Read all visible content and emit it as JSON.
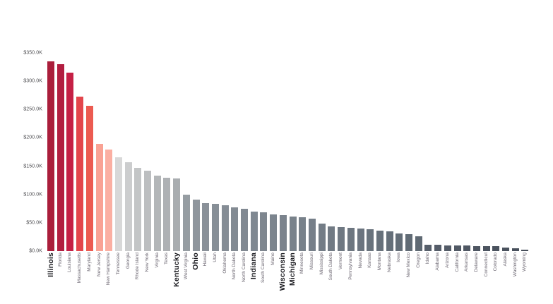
{
  "chart_data": {
    "type": "bar",
    "title": "",
    "xlabel": "",
    "ylabel": "",
    "grid": false,
    "legend": false,
    "ylim": [
      0,
      350
    ],
    "value_format": "$K",
    "y_ticks": [
      {
        "label": "$0.0K",
        "value": 0
      },
      {
        "label": "$50.0K",
        "value": 50
      },
      {
        "label": "$100.0K",
        "value": 100
      },
      {
        "label": "$150.0K",
        "value": 150
      },
      {
        "label": "$200.0K",
        "value": 200
      },
      {
        "label": "$250.0K",
        "value": 250
      },
      {
        "label": "$300.0K",
        "value": 300
      },
      {
        "label": "$350.0K",
        "value": 350
      }
    ],
    "highlighted_states": [
      "Illinois",
      "Kentucky",
      "Ohio",
      "Indiana",
      "Wisconsin",
      "Michigan"
    ],
    "palette": {
      "high_red": "#AA1E3B",
      "mid_red": "#EC5B51",
      "salmon": "#FBAFA2",
      "light_gray": "#D8D8D8",
      "dark_slate": "#454D59"
    },
    "bars": [
      {
        "label": "Illinois",
        "value": 335,
        "color": "#AA1E3B",
        "bold": true
      },
      {
        "label": "Florida",
        "value": 330,
        "color": "#B21E40",
        "bold": false
      },
      {
        "label": "Louisiana",
        "value": 315,
        "color": "#C52045",
        "bold": false
      },
      {
        "label": "Massachusetts",
        "value": 273,
        "color": "#E3464C",
        "bold": false
      },
      {
        "label": "Maryland",
        "value": 257,
        "color": "#EC5B51",
        "bold": false
      },
      {
        "label": "New Jersey",
        "value": 189,
        "color": "#F9A294",
        "bold": false
      },
      {
        "label": "New Hampshire",
        "value": 179,
        "color": "#FBAFA2",
        "bold": false
      },
      {
        "label": "Tennessee",
        "value": 166,
        "color": "#D8D8D8",
        "bold": false
      },
      {
        "label": "Georgia",
        "value": 157,
        "color": "#CCCDCE",
        "bold": false
      },
      {
        "label": "Rhode Island",
        "value": 147,
        "color": "#C3C5C6",
        "bold": false
      },
      {
        "label": "New York",
        "value": 142,
        "color": "#BCBEC0",
        "bold": false
      },
      {
        "label": "Virginia",
        "value": 133,
        "color": "#B3B6B8",
        "bold": false
      },
      {
        "label": "Texas",
        "value": 129,
        "color": "#AEB1B4",
        "bold": false
      },
      {
        "label": "Kentucky",
        "value": 128,
        "color": "#A9ADB0",
        "bold": true
      },
      {
        "label": "West Virginia",
        "value": 100,
        "color": "#969DA2",
        "bold": false
      },
      {
        "label": "Ohio",
        "value": 91,
        "color": "#8F969D",
        "bold": true
      },
      {
        "label": "Hawaii",
        "value": 85,
        "color": "#8A9199",
        "bold": false
      },
      {
        "label": "Utah",
        "value": 83,
        "color": "#878F97",
        "bold": false
      },
      {
        "label": "Oklahoma",
        "value": 81,
        "color": "#858D95",
        "bold": false
      },
      {
        "label": "North Dakota",
        "value": 77,
        "color": "#838B93",
        "bold": false
      },
      {
        "label": "North Carolina",
        "value": 75,
        "color": "#818992",
        "bold": false
      },
      {
        "label": "Indiana",
        "value": 70,
        "color": "#7F8891",
        "bold": true
      },
      {
        "label": "South Carolina",
        "value": 68,
        "color": "#7E868F",
        "bold": false
      },
      {
        "label": "Maine",
        "value": 64.5,
        "color": "#7C858E",
        "bold": false
      },
      {
        "label": "Wisconsin",
        "value": 63.5,
        "color": "#7B838D",
        "bold": true
      },
      {
        "label": "Michigan",
        "value": 61.5,
        "color": "#79828B",
        "bold": true
      },
      {
        "label": "Minnesota",
        "value": 60,
        "color": "#78818A",
        "bold": false
      },
      {
        "label": "Missouri",
        "value": 57.5,
        "color": "#767F89",
        "bold": false
      },
      {
        "label": "Mississippi",
        "value": 49,
        "color": "#737C86",
        "bold": false
      },
      {
        "label": "South Dakota",
        "value": 44,
        "color": "#717A84",
        "bold": false
      },
      {
        "label": "Vermont",
        "value": 42.5,
        "color": "#6F7882",
        "bold": false
      },
      {
        "label": "Pennsylvania",
        "value": 41,
        "color": "#6D7680",
        "bold": false
      },
      {
        "label": "Nevada",
        "value": 40,
        "color": "#6B747F",
        "bold": false
      },
      {
        "label": "Kansas",
        "value": 38.5,
        "color": "#69737D",
        "bold": false
      },
      {
        "label": "Montana",
        "value": 36,
        "color": "#67717B",
        "bold": false
      },
      {
        "label": "Nebraska",
        "value": 34.5,
        "color": "#656F79",
        "bold": false
      },
      {
        "label": "Iowa",
        "value": 31,
        "color": "#636D77",
        "bold": false
      },
      {
        "label": "New Mexico",
        "value": 29.5,
        "color": "#616B75",
        "bold": false
      },
      {
        "label": "Oregon",
        "value": 26,
        "color": "#5F6973",
        "bold": false
      },
      {
        "label": "Idaho",
        "value": 11.5,
        "color": "#575F6B",
        "bold": false
      },
      {
        "label": "Alabama",
        "value": 11,
        "color": "#555D69",
        "bold": false
      },
      {
        "label": "Arizona",
        "value": 10.5,
        "color": "#535B67",
        "bold": false
      },
      {
        "label": "California",
        "value": 9.8,
        "color": "#515965",
        "bold": false
      },
      {
        "label": "Arkansas",
        "value": 9.5,
        "color": "#4F5763",
        "bold": false
      },
      {
        "label": "Delaware",
        "value": 8.8,
        "color": "#4E5662",
        "bold": false
      },
      {
        "label": "Connecticut",
        "value": 8.6,
        "color": "#4C5460",
        "bold": false
      },
      {
        "label": "Colorado",
        "value": 8.3,
        "color": "#4B535F",
        "bold": false
      },
      {
        "label": "Alaska",
        "value": 6.2,
        "color": "#4A525E",
        "bold": false
      },
      {
        "label": "Washington",
        "value": 5.5,
        "color": "#48505C",
        "bold": false
      },
      {
        "label": "Wyoming",
        "value": 3,
        "color": "#454D59",
        "bold": false
      }
    ]
  }
}
